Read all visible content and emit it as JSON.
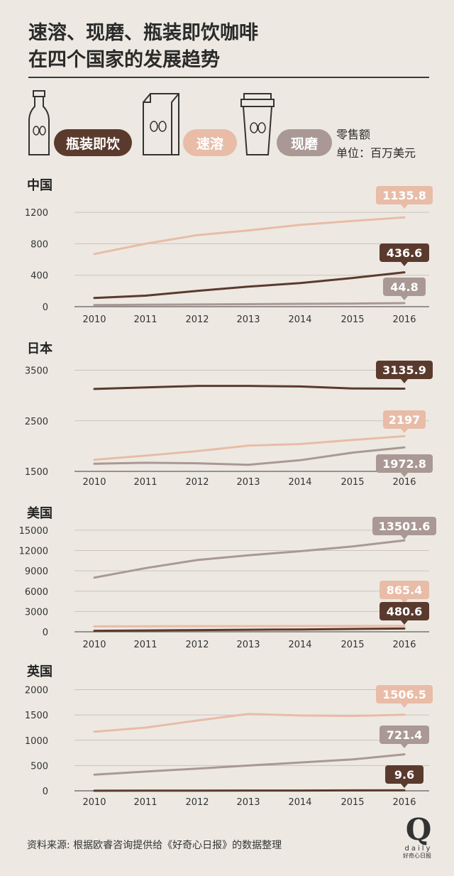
{
  "title_line1": "速溶、现磨、瓶装即饮咖啡",
  "title_line2": "在四个国家的发展趋势",
  "legend": {
    "bottled": {
      "label": "瓶装即饮",
      "color": "#5b3a2e",
      "icon": "bottle-icon"
    },
    "instant": {
      "label": "速溶",
      "color": "#e8bca7",
      "icon": "coffee-bag-icon"
    },
    "ground": {
      "label": "现磨",
      "color": "#a99894",
      "icon": "cup-icon"
    }
  },
  "unit_line1": "零售额",
  "unit_line2": "单位：百万美元",
  "colors": {
    "bottled": "#5b3a2e",
    "instant": "#e8bca7",
    "ground": "#a99894",
    "axis": "#7a7470",
    "grid": "#c9c3bb"
  },
  "chart_data": [
    {
      "type": "line",
      "title": "中国",
      "x": [
        "2010",
        "2011",
        "2012",
        "2013",
        "2014",
        "2015",
        "2016"
      ],
      "yticks": [
        "0",
        "400",
        "800",
        "1200"
      ],
      "ylim": [
        0,
        1300
      ],
      "series": [
        {
          "key": "instant",
          "name": "速溶",
          "values": [
            670,
            800,
            910,
            970,
            1040,
            1090,
            1135.8
          ],
          "label": "1135.8"
        },
        {
          "key": "bottled",
          "name": "瓶装即饮",
          "values": [
            110,
            140,
            200,
            255,
            300,
            365,
            436.6
          ],
          "label": "436.6"
        },
        {
          "key": "ground",
          "name": "现磨",
          "values": [
            20,
            25,
            28,
            32,
            36,
            40,
            44.8
          ],
          "label": "44.8"
        }
      ]
    },
    {
      "type": "line",
      "title": "日本",
      "x": [
        "2010",
        "2011",
        "2012",
        "2013",
        "2014",
        "2015",
        "2016"
      ],
      "yticks": [
        "1500",
        "2500",
        "3500"
      ],
      "ylim": [
        1500,
        3550
      ],
      "series": [
        {
          "key": "bottled",
          "name": "瓶装即饮",
          "values": [
            3130,
            3160,
            3190,
            3190,
            3180,
            3140,
            3135.9
          ],
          "label": "3135.9"
        },
        {
          "key": "instant",
          "name": "速溶",
          "values": [
            1730,
            1810,
            1900,
            2010,
            2040,
            2120,
            2197
          ],
          "label": "2197"
        },
        {
          "key": "ground",
          "name": "现磨",
          "values": [
            1650,
            1670,
            1660,
            1630,
            1720,
            1870,
            1972.8
          ],
          "label": "1972.8"
        }
      ]
    },
    {
      "type": "line",
      "title": "美国",
      "x": [
        "2010",
        "2011",
        "2012",
        "2013",
        "2014",
        "2015",
        "2016"
      ],
      "yticks": [
        "0",
        "3000",
        "6000",
        "9000",
        "12000",
        "15000"
      ],
      "ylim": [
        0,
        15200
      ],
      "series": [
        {
          "key": "ground",
          "name": "现磨",
          "values": [
            8000,
            9400,
            10600,
            11300,
            11900,
            12600,
            13501.6
          ],
          "label": "13501.6"
        },
        {
          "key": "instant",
          "name": "速溶",
          "values": [
            800,
            810,
            830,
            840,
            850,
            855,
            865.4
          ],
          "label": "865.4"
        },
        {
          "key": "bottled",
          "name": "瓶装即饮",
          "values": [
            150,
            200,
            250,
            300,
            350,
            420,
            480.6
          ],
          "label": "480.6"
        }
      ]
    },
    {
      "type": "line",
      "title": "英国",
      "x": [
        "2010",
        "2011",
        "2012",
        "2013",
        "2014",
        "2015",
        "2016"
      ],
      "yticks": [
        "0",
        "500",
        "1000",
        "1500",
        "2000"
      ],
      "ylim": [
        0,
        2050
      ],
      "series": [
        {
          "key": "instant",
          "name": "速溶",
          "values": [
            1170,
            1250,
            1390,
            1520,
            1490,
            1480,
            1506.5
          ],
          "label": "1506.5"
        },
        {
          "key": "ground",
          "name": "现磨",
          "values": [
            320,
            380,
            440,
            500,
            560,
            620,
            721.4
          ],
          "label": "721.4"
        },
        {
          "key": "bottled",
          "name": "瓶装即饮",
          "values": [
            2,
            3,
            4,
            5,
            6,
            8,
            9.6
          ],
          "label": "9.6"
        }
      ]
    }
  ],
  "footer": "资料来源: 根据欧睿咨询提供给《好奇心日报》的数据整理",
  "logo": {
    "letter": "Q",
    "word": "daily",
    "sub": "好奇心日报"
  }
}
